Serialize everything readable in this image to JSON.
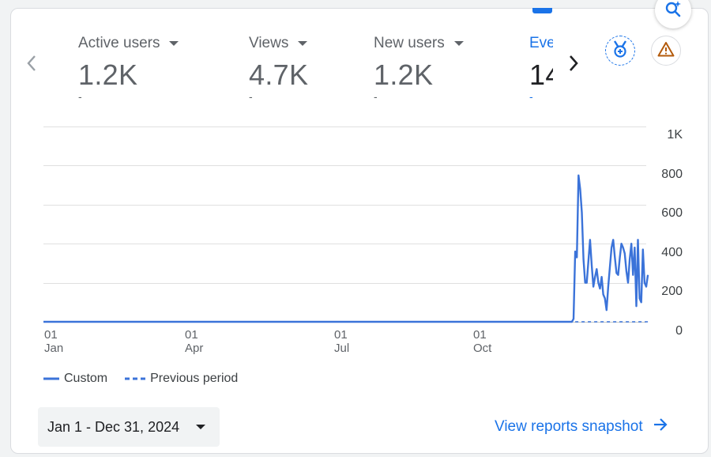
{
  "colors": {
    "accent": "#1a73e8",
    "line": "#3b73d9",
    "warning": "#b35a0b"
  },
  "metrics": [
    {
      "label": "Active users",
      "value": "1.2K",
      "change": "-"
    },
    {
      "label": "Views",
      "value": "4.7K",
      "change": "-"
    },
    {
      "label": "New users",
      "value": "1.2K",
      "change": "-"
    },
    {
      "label": "Eve",
      "value": "14",
      "change": "-"
    }
  ],
  "icons": {
    "prev": "chevron-left-icon",
    "next": "chevron-right-icon",
    "insights": "search-sparkle-icon",
    "badge": "medal-icon",
    "warning": "warning-icon"
  },
  "chart_data": {
    "type": "line",
    "ylim": [
      0,
      1000
    ],
    "y_ticks": [
      "0",
      "200",
      "400",
      "600",
      "800",
      "1K"
    ],
    "x_ticks": [
      {
        "day": "01",
        "month": "Jan"
      },
      {
        "day": "01",
        "month": "Apr"
      },
      {
        "day": "01",
        "month": "Jul"
      },
      {
        "day": "01",
        "month": "Oct"
      }
    ],
    "x_domain_days": [
      0,
      365
    ],
    "x_tick_days": [
      0,
      91,
      182,
      274
    ],
    "series": [
      {
        "name": "Custom",
        "style": "solid",
        "points": [
          [
            0,
            0
          ],
          [
            320,
            0
          ],
          [
            321,
            15
          ],
          [
            322,
            360
          ],
          [
            323,
            330
          ],
          [
            324,
            750
          ],
          [
            325,
            680
          ],
          [
            326,
            560
          ],
          [
            327,
            320
          ],
          [
            328,
            200
          ],
          [
            329,
            200
          ],
          [
            330,
            310
          ],
          [
            331,
            420
          ],
          [
            332,
            290
          ],
          [
            333,
            180
          ],
          [
            334,
            230
          ],
          [
            335,
            270
          ],
          [
            336,
            200
          ],
          [
            337,
            170
          ],
          [
            338,
            230
          ],
          [
            339,
            140
          ],
          [
            340,
            120
          ],
          [
            341,
            60
          ],
          [
            342,
            180
          ],
          [
            343,
            280
          ],
          [
            344,
            380
          ],
          [
            345,
            420
          ],
          [
            346,
            330
          ],
          [
            347,
            250
          ],
          [
            348,
            240
          ],
          [
            349,
            330
          ],
          [
            350,
            400
          ],
          [
            351,
            380
          ],
          [
            352,
            350
          ],
          [
            353,
            260
          ],
          [
            354,
            200
          ],
          [
            355,
            320
          ],
          [
            356,
            400
          ],
          [
            357,
            240
          ],
          [
            358,
            380
          ],
          [
            359,
            80
          ],
          [
            360,
            420
          ],
          [
            361,
            120
          ],
          [
            362,
            100
          ],
          [
            363,
            370
          ],
          [
            364,
            200
          ],
          [
            365,
            180
          ],
          [
            366,
            240
          ]
        ]
      },
      {
        "name": "Previous period",
        "style": "dashed",
        "points": [
          [
            322,
            0
          ],
          [
            366,
            0
          ]
        ]
      }
    ],
    "legend_position": "bottom-left",
    "grid": true
  },
  "legend": {
    "custom": "Custom",
    "previous": "Previous period"
  },
  "date_range": "Jan 1 - Dec 31, 2024",
  "snapshot_link": "View reports snapshot"
}
